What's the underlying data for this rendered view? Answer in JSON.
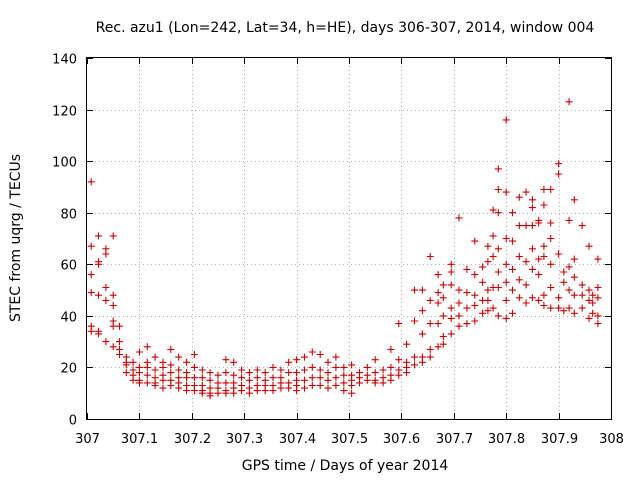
{
  "chart_data": {
    "type": "scatter",
    "title": "Rec. azu1 (Lon=242, Lat=34, h=HE), days 306-307, 2014, window 004",
    "xlabel": "GPS time / Days of year 2014",
    "ylabel": "STEC from uqrg / TECUs",
    "xlim": [
      307,
      308
    ],
    "ylim": [
      0,
      140
    ],
    "x_ticks": [
      307,
      307.1,
      307.2,
      307.3,
      307.4,
      307.5,
      307.6,
      307.7,
      307.8,
      307.9,
      308
    ],
    "x_tick_labels": [
      "307",
      "307.1",
      "307.2",
      "307.3",
      "307.4",
      "307.5",
      "307.6",
      "307.7",
      "307.8",
      "307.9",
      "308"
    ],
    "y_ticks": [
      0,
      20,
      40,
      60,
      80,
      100,
      120,
      140
    ],
    "y_tick_labels": [
      "0",
      "20",
      "40",
      "60",
      "80",
      "100",
      "120",
      "140"
    ],
    "grid": true,
    "marker": "+",
    "color": "#cc0000",
    "legend": "none",
    "points": [
      [
        307.008,
        92
      ],
      [
        307.008,
        67
      ],
      [
        307.008,
        56
      ],
      [
        307.008,
        49
      ],
      [
        307.008,
        36
      ],
      [
        307.008,
        34
      ],
      [
        307.022,
        71
      ],
      [
        307.022,
        61
      ],
      [
        307.022,
        60
      ],
      [
        307.022,
        48
      ],
      [
        307.022,
        34
      ],
      [
        307.022,
        33
      ],
      [
        307.036,
        66
      ],
      [
        307.036,
        64
      ],
      [
        307.036,
        51
      ],
      [
        307.036,
        46
      ],
      [
        307.036,
        30
      ],
      [
        307.05,
        71
      ],
      [
        307.05,
        48
      ],
      [
        307.05,
        44
      ],
      [
        307.05,
        38
      ],
      [
        307.05,
        36
      ],
      [
        307.05,
        28
      ],
      [
        307.062,
        36
      ],
      [
        307.062,
        30
      ],
      [
        307.062,
        27
      ],
      [
        307.062,
        25
      ],
      [
        307.075,
        24
      ],
      [
        307.075,
        22
      ],
      [
        307.075,
        21
      ],
      [
        307.075,
        18
      ],
      [
        307.088,
        22
      ],
      [
        307.088,
        19
      ],
      [
        307.088,
        17
      ],
      [
        307.088,
        15
      ],
      [
        307.1,
        26
      ],
      [
        307.1,
        20
      ],
      [
        307.1,
        18
      ],
      [
        307.1,
        15
      ],
      [
        307.1,
        14
      ],
      [
        307.115,
        28
      ],
      [
        307.115,
        22
      ],
      [
        307.115,
        20
      ],
      [
        307.115,
        17
      ],
      [
        307.115,
        14
      ],
      [
        307.13,
        24
      ],
      [
        307.13,
        19
      ],
      [
        307.13,
        16
      ],
      [
        307.13,
        14
      ],
      [
        307.13,
        13
      ],
      [
        307.145,
        22
      ],
      [
        307.145,
        20
      ],
      [
        307.145,
        17
      ],
      [
        307.145,
        15
      ],
      [
        307.145,
        12
      ],
      [
        307.16,
        27
      ],
      [
        307.16,
        21
      ],
      [
        307.16,
        18
      ],
      [
        307.16,
        15
      ],
      [
        307.16,
        13
      ],
      [
        307.175,
        24
      ],
      [
        307.175,
        19
      ],
      [
        307.175,
        16
      ],
      [
        307.175,
        14
      ],
      [
        307.175,
        12
      ],
      [
        307.19,
        22
      ],
      [
        307.19,
        18
      ],
      [
        307.19,
        16
      ],
      [
        307.19,
        13
      ],
      [
        307.19,
        11
      ],
      [
        307.205,
        25
      ],
      [
        307.205,
        20
      ],
      [
        307.205,
        16
      ],
      [
        307.205,
        13
      ],
      [
        307.205,
        11
      ],
      [
        307.22,
        19
      ],
      [
        307.22,
        16
      ],
      [
        307.22,
        13
      ],
      [
        307.22,
        11
      ],
      [
        307.22,
        10
      ],
      [
        307.235,
        18
      ],
      [
        307.235,
        15
      ],
      [
        307.235,
        12
      ],
      [
        307.235,
        10
      ],
      [
        307.235,
        9
      ],
      [
        307.25,
        17
      ],
      [
        307.25,
        14
      ],
      [
        307.25,
        12
      ],
      [
        307.25,
        10
      ],
      [
        307.265,
        23
      ],
      [
        307.265,
        18
      ],
      [
        307.265,
        14
      ],
      [
        307.265,
        11
      ],
      [
        307.265,
        10
      ],
      [
        307.28,
        22
      ],
      [
        307.28,
        17
      ],
      [
        307.28,
        14
      ],
      [
        307.28,
        12
      ],
      [
        307.28,
        10
      ],
      [
        307.295,
        19
      ],
      [
        307.295,
        16
      ],
      [
        307.295,
        13
      ],
      [
        307.295,
        11
      ],
      [
        307.31,
        18
      ],
      [
        307.31,
        15
      ],
      [
        307.31,
        12
      ],
      [
        307.31,
        10
      ],
      [
        307.325,
        19
      ],
      [
        307.325,
        16
      ],
      [
        307.325,
        13
      ],
      [
        307.325,
        11
      ],
      [
        307.34,
        18
      ],
      [
        307.34,
        15
      ],
      [
        307.34,
        13
      ],
      [
        307.34,
        11
      ],
      [
        307.355,
        20
      ],
      [
        307.355,
        16
      ],
      [
        307.355,
        13
      ],
      [
        307.355,
        11
      ],
      [
        307.37,
        19
      ],
      [
        307.37,
        16
      ],
      [
        307.37,
        14
      ],
      [
        307.37,
        12
      ],
      [
        307.385,
        22
      ],
      [
        307.385,
        18
      ],
      [
        307.385,
        14
      ],
      [
        307.385,
        12
      ],
      [
        307.4,
        23
      ],
      [
        307.4,
        18
      ],
      [
        307.4,
        15
      ],
      [
        307.4,
        13
      ],
      [
        307.4,
        11
      ],
      [
        307.415,
        24
      ],
      [
        307.415,
        19
      ],
      [
        307.415,
        15
      ],
      [
        307.415,
        12
      ],
      [
        307.43,
        26
      ],
      [
        307.43,
        20
      ],
      [
        307.43,
        16
      ],
      [
        307.43,
        13
      ],
      [
        307.445,
        25
      ],
      [
        307.445,
        19
      ],
      [
        307.445,
        16
      ],
      [
        307.445,
        13
      ],
      [
        307.46,
        22
      ],
      [
        307.46,
        18
      ],
      [
        307.46,
        15
      ],
      [
        307.46,
        12
      ],
      [
        307.475,
        24
      ],
      [
        307.475,
        20
      ],
      [
        307.475,
        16
      ],
      [
        307.475,
        13
      ],
      [
        307.49,
        20
      ],
      [
        307.49,
        17
      ],
      [
        307.49,
        14
      ],
      [
        307.49,
        11
      ],
      [
        307.505,
        21
      ],
      [
        307.505,
        17
      ],
      [
        307.505,
        15
      ],
      [
        307.505,
        13
      ],
      [
        307.505,
        10
      ],
      [
        307.52,
        18
      ],
      [
        307.52,
        16
      ],
      [
        307.52,
        14
      ],
      [
        307.535,
        20
      ],
      [
        307.535,
        17
      ],
      [
        307.535,
        15
      ],
      [
        307.55,
        23
      ],
      [
        307.55,
        18
      ],
      [
        307.55,
        15
      ],
      [
        307.55,
        14
      ],
      [
        307.565,
        19
      ],
      [
        307.565,
        16
      ],
      [
        307.565,
        14
      ],
      [
        307.58,
        27
      ],
      [
        307.58,
        20
      ],
      [
        307.58,
        17
      ],
      [
        307.58,
        15
      ],
      [
        307.595,
        37
      ],
      [
        307.595,
        23
      ],
      [
        307.595,
        19
      ],
      [
        307.595,
        17
      ],
      [
        307.61,
        29
      ],
      [
        307.61,
        22
      ],
      [
        307.61,
        20
      ],
      [
        307.61,
        18
      ],
      [
        307.625,
        50
      ],
      [
        307.625,
        38
      ],
      [
        307.625,
        24
      ],
      [
        307.625,
        21
      ],
      [
        307.64,
        50
      ],
      [
        307.64,
        42
      ],
      [
        307.64,
        33
      ],
      [
        307.64,
        24
      ],
      [
        307.64,
        22
      ],
      [
        307.655,
        63
      ],
      [
        307.655,
        46
      ],
      [
        307.655,
        37
      ],
      [
        307.655,
        27
      ],
      [
        307.655,
        24
      ],
      [
        307.67,
        56
      ],
      [
        307.67,
        49
      ],
      [
        307.67,
        45
      ],
      [
        307.67,
        37
      ],
      [
        307.67,
        28
      ],
      [
        307.68,
        52
      ],
      [
        307.68,
        47
      ],
      [
        307.68,
        40
      ],
      [
        307.68,
        32
      ],
      [
        307.68,
        29
      ],
      [
        307.695,
        60
      ],
      [
        307.695,
        57
      ],
      [
        307.695,
        52
      ],
      [
        307.695,
        43
      ],
      [
        307.695,
        39
      ],
      [
        307.695,
        33
      ],
      [
        307.71,
        78
      ],
      [
        307.71,
        50
      ],
      [
        307.71,
        45
      ],
      [
        307.71,
        40
      ],
      [
        307.71,
        36
      ],
      [
        307.725,
        58
      ],
      [
        307.725,
        49
      ],
      [
        307.725,
        43
      ],
      [
        307.725,
        37
      ],
      [
        307.74,
        69
      ],
      [
        307.74,
        56
      ],
      [
        307.74,
        48
      ],
      [
        307.74,
        44
      ],
      [
        307.74,
        38
      ],
      [
        307.755,
        59
      ],
      [
        307.755,
        53
      ],
      [
        307.755,
        46
      ],
      [
        307.755,
        41
      ],
      [
        307.765,
        67
      ],
      [
        307.765,
        61
      ],
      [
        307.765,
        50
      ],
      [
        307.765,
        46
      ],
      [
        307.765,
        42
      ],
      [
        307.775,
        81
      ],
      [
        307.775,
        71
      ],
      [
        307.775,
        63
      ],
      [
        307.775,
        51
      ],
      [
        307.775,
        43
      ],
      [
        307.785,
        97
      ],
      [
        307.785,
        89
      ],
      [
        307.785,
        80
      ],
      [
        307.785,
        66
      ],
      [
        307.785,
        57
      ],
      [
        307.785,
        51
      ],
      [
        307.785,
        40
      ],
      [
        307.8,
        116
      ],
      [
        307.8,
        88
      ],
      [
        307.8,
        70
      ],
      [
        307.8,
        60
      ],
      [
        307.8,
        53
      ],
      [
        307.8,
        46
      ],
      [
        307.8,
        39
      ],
      [
        307.812,
        80
      ],
      [
        307.812,
        69
      ],
      [
        307.812,
        58
      ],
      [
        307.812,
        50
      ],
      [
        307.812,
        41
      ],
      [
        307.825,
        86
      ],
      [
        307.825,
        75
      ],
      [
        307.825,
        63
      ],
      [
        307.825,
        54
      ],
      [
        307.825,
        47
      ],
      [
        307.838,
        88
      ],
      [
        307.838,
        75
      ],
      [
        307.838,
        61
      ],
      [
        307.838,
        52
      ],
      [
        307.838,
        45
      ],
      [
        307.85,
        85
      ],
      [
        307.85,
        82
      ],
      [
        307.85,
        75
      ],
      [
        307.85,
        66
      ],
      [
        307.85,
        58
      ],
      [
        307.85,
        47
      ],
      [
        307.862,
        77
      ],
      [
        307.862,
        76
      ],
      [
        307.862,
        62
      ],
      [
        307.862,
        56
      ],
      [
        307.862,
        46
      ],
      [
        307.872,
        89
      ],
      [
        307.872,
        83
      ],
      [
        307.872,
        67
      ],
      [
        307.872,
        63
      ],
      [
        307.872,
        48
      ],
      [
        307.872,
        44
      ],
      [
        307.885,
        89
      ],
      [
        307.885,
        76
      ],
      [
        307.885,
        70
      ],
      [
        307.885,
        60
      ],
      [
        307.885,
        51
      ],
      [
        307.885,
        43
      ],
      [
        307.9,
        99
      ],
      [
        307.9,
        95
      ],
      [
        307.9,
        64
      ],
      [
        307.9,
        47
      ],
      [
        307.9,
        43
      ],
      [
        307.91,
        57
      ],
      [
        307.91,
        53
      ],
      [
        307.91,
        42
      ],
      [
        307.92,
        123
      ],
      [
        307.92,
        77
      ],
      [
        307.92,
        59
      ],
      [
        307.92,
        50
      ],
      [
        307.92,
        43
      ],
      [
        307.93,
        85
      ],
      [
        307.93,
        62
      ],
      [
        307.93,
        55
      ],
      [
        307.93,
        48
      ],
      [
        307.93,
        41
      ],
      [
        307.945,
        75
      ],
      [
        307.945,
        52
      ],
      [
        307.945,
        48
      ],
      [
        307.945,
        43
      ],
      [
        307.958,
        67
      ],
      [
        307.958,
        50
      ],
      [
        307.958,
        46
      ],
      [
        307.958,
        39
      ],
      [
        307.965,
        48
      ],
      [
        307.965,
        45
      ],
      [
        307.965,
        41
      ],
      [
        307.975,
        62
      ],
      [
        307.975,
        51
      ],
      [
        307.975,
        47
      ],
      [
        307.975,
        40
      ],
      [
        307.975,
        37
      ]
    ]
  }
}
